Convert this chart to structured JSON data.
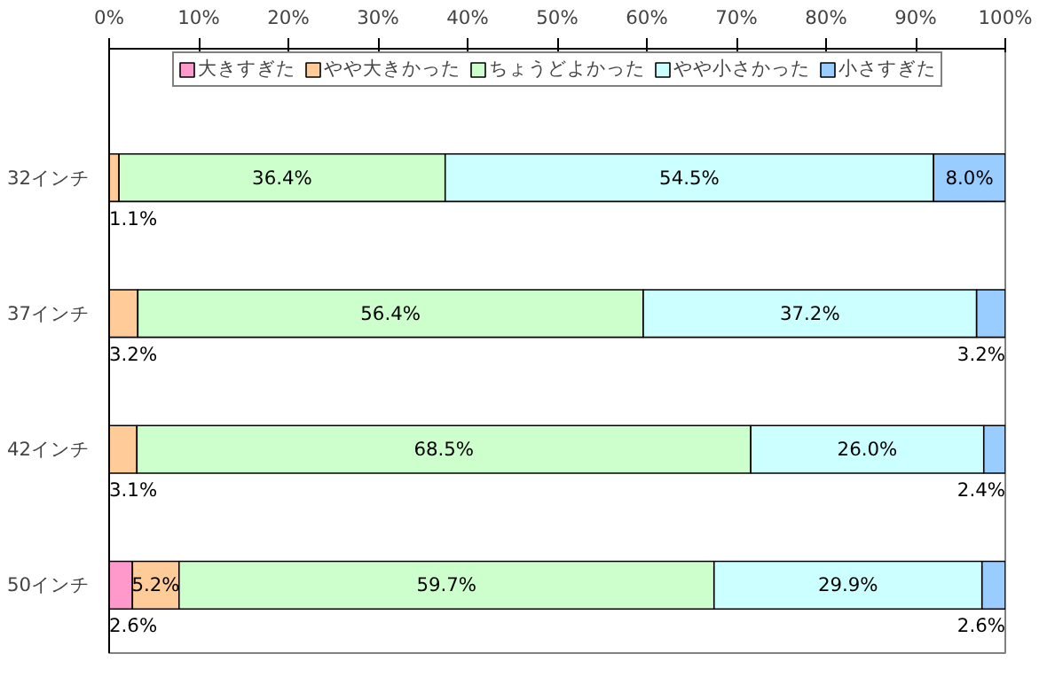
{
  "chart_data": {
    "type": "bar",
    "orientation": "horizontal",
    "stacked": true,
    "legend": "top",
    "categories": [
      "32インチ",
      "37インチ",
      "42インチ",
      "50インチ"
    ],
    "xlim": [
      0,
      100
    ],
    "xticks": [
      {
        "value": 0,
        "label": "0%"
      },
      {
        "value": 10,
        "label": "10%"
      },
      {
        "value": 20,
        "label": "20%"
      },
      {
        "value": 30,
        "label": "30%"
      },
      {
        "value": 40,
        "label": "40%"
      },
      {
        "value": 50,
        "label": "50%"
      },
      {
        "value": 60,
        "label": "60%"
      },
      {
        "value": 70,
        "label": "70%"
      },
      {
        "value": 80,
        "label": "80%"
      },
      {
        "value": 90,
        "label": "90%"
      },
      {
        "value": 100,
        "label": "100%"
      }
    ],
    "series": [
      {
        "name": "大きすぎた",
        "color": "#ff99cc",
        "values": [
          0,
          0,
          0,
          2.6
        ],
        "value_labels": [
          null,
          null,
          null,
          "2.6%"
        ]
      },
      {
        "name": "やや大きかった",
        "color": "#ffcc99",
        "values": [
          1.1,
          3.2,
          3.1,
          5.2
        ],
        "value_labels": [
          "1.1%",
          "3.2%",
          "3.1%",
          "5.2%"
        ]
      },
      {
        "name": "ちょうどよかった",
        "color": "#ccffcc",
        "values": [
          36.4,
          56.4,
          68.5,
          59.7
        ],
        "value_labels": [
          "36.4%",
          "56.4%",
          "68.5%",
          "59.7%"
        ]
      },
      {
        "name": "やや小さかった",
        "color": "#ccffff",
        "values": [
          54.5,
          37.2,
          26.0,
          29.9
        ],
        "value_labels": [
          "54.5%",
          "37.2%",
          "26.0%",
          "29.9%"
        ]
      },
      {
        "name": "小さすぎた",
        "color": "#99ccff",
        "values": [
          8.0,
          3.2,
          2.4,
          2.6
        ],
        "value_labels": [
          "8.0%",
          "3.2%",
          "2.4%",
          "2.6%"
        ]
      }
    ]
  }
}
